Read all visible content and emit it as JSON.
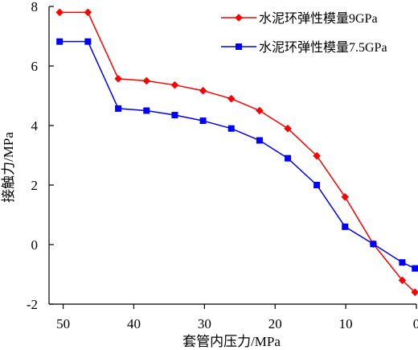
{
  "chart_data": {
    "type": "line",
    "xlabel": "套管内压力/MPa",
    "ylabel": "接触力/MPa",
    "xlim": [
      52,
      0
    ],
    "ylim": [
      -2,
      8
    ],
    "x_reversed": true,
    "x_ticks": [
      50,
      40,
      30,
      20,
      10,
      0
    ],
    "y_ticks": [
      -2,
      0,
      2,
      4,
      6,
      8
    ],
    "x_tick_labels": [
      "50",
      "40",
      "30",
      "20",
      "10",
      "0"
    ],
    "y_tick_labels": [
      "-2",
      "0",
      "2",
      "4",
      "6",
      "8"
    ],
    "grid": false,
    "legend_position": "top-right",
    "series": [
      {
        "name": "水泥环弹性模量9GPa",
        "color": "#ff0000",
        "marker": "diamond",
        "x": [
          50.5,
          46.5,
          42.2,
          38.2,
          34.2,
          30.2,
          26.2,
          22.2,
          18.2,
          14.1,
          10.1,
          6.1,
          2.0,
          0.2
        ],
        "y": [
          7.8,
          7.8,
          5.57,
          5.5,
          5.36,
          5.17,
          4.9,
          4.5,
          3.9,
          2.98,
          1.6,
          0.02,
          -1.2,
          -1.6
        ]
      },
      {
        "name": "水泥环弹性模量7.5GPa",
        "color": "#0000ff",
        "marker": "square",
        "x": [
          50.5,
          46.5,
          42.2,
          38.2,
          34.2,
          30.2,
          26.2,
          22.2,
          18.2,
          14.1,
          10.1,
          6.1,
          2.0,
          0.2
        ],
        "y": [
          6.82,
          6.82,
          4.57,
          4.5,
          4.35,
          4.16,
          3.9,
          3.5,
          2.9,
          2.0,
          0.6,
          0.02,
          -0.6,
          -0.8
        ]
      }
    ]
  }
}
